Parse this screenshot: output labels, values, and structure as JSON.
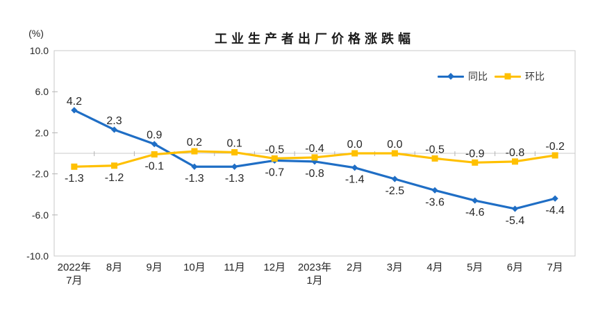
{
  "chart": {
    "title": "工业生产者出厂价格涨跌幅",
    "unit_label": "(%)"
  },
  "chart_data": {
    "type": "line",
    "title": "工业生产者出厂价格涨跌幅",
    "ylabel": "(%)",
    "ylim": [
      -10,
      10
    ],
    "y_ticks": [
      {
        "v": 10,
        "label": "10.0"
      },
      {
        "v": 6,
        "label": "6.0"
      },
      {
        "v": 2,
        "label": "2.0"
      },
      {
        "v": -2,
        "label": "-2.0"
      },
      {
        "v": -6,
        "label": "-6.0"
      },
      {
        "v": -10,
        "label": "-10.0"
      }
    ],
    "categories": [
      [
        "2022年",
        "7月"
      ],
      [
        "8月"
      ],
      [
        "9月"
      ],
      [
        "10月"
      ],
      [
        "11月"
      ],
      [
        "12月"
      ],
      [
        "2023年",
        "1月"
      ],
      [
        "2月"
      ],
      [
        "3月"
      ],
      [
        "4月"
      ],
      [
        "5月"
      ],
      [
        "6月"
      ],
      [
        "7月"
      ]
    ],
    "series": [
      {
        "id": "yoy",
        "name": "同比",
        "color": "#1f6ec5",
        "marker": "diamond",
        "values": [
          4.2,
          2.3,
          0.9,
          -1.3,
          -1.3,
          -0.7,
          -0.8,
          -1.4,
          -2.5,
          -3.6,
          -4.6,
          -5.4,
          -4.4
        ],
        "label_side": [
          "above",
          "above",
          "above",
          "below",
          "below",
          "below",
          "below",
          "below",
          "below",
          "below",
          "below",
          "below",
          "below"
        ]
      },
      {
        "id": "mom",
        "name": "环比",
        "color": "#ffc000",
        "marker": "square",
        "values": [
          -1.3,
          -1.2,
          -0.1,
          0.2,
          0.1,
          -0.5,
          -0.4,
          0.0,
          0.0,
          -0.5,
          -0.9,
          -0.8,
          -0.2
        ],
        "label_side": [
          "below",
          "below",
          "below",
          "above",
          "above",
          "above",
          "above",
          "above",
          "above",
          "above",
          "above",
          "above",
          "above"
        ]
      }
    ],
    "grid": "zero-line-only",
    "legend_position": "top-right-inside",
    "colors": {
      "axis_border": "#c8c8c8",
      "zero_line": "#c9c9c9",
      "tick": "#b3b3b3",
      "text": "#262626"
    }
  }
}
